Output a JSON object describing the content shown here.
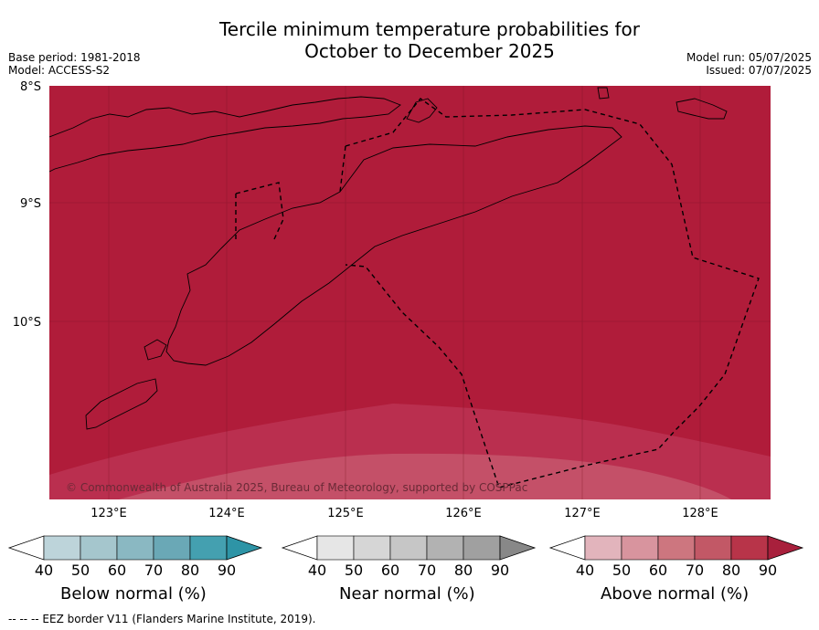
{
  "title_line1": "Tercile minimum temperature probabilities for",
  "title_line2": "October to December 2025",
  "meta_left": {
    "base_period": "Base period: 1981-2018",
    "model": "Model: ACCESS-S2"
  },
  "meta_right": {
    "model_run": "Model run: 05/07/2025",
    "issued": "Issued: 07/07/2025"
  },
  "map": {
    "lat_labels": [
      "8°S",
      "9°S",
      "10°S"
    ],
    "lon_labels": [
      "123°E",
      "124°E",
      "125°E",
      "126°E",
      "127°E",
      "128°E"
    ],
    "copyright": "© Commonwealth of Australia 2025, Bureau of Meteorology, supported by COSPPac",
    "colors": {
      "above_90": "#b01c3a",
      "above_80": "#c03a52",
      "above_70": "#cd6a78",
      "land_edge": "#000000"
    }
  },
  "legends": [
    {
      "title": "Below normal (%)",
      "ticks": [
        "40",
        "50",
        "60",
        "70",
        "80",
        "90"
      ],
      "colors": [
        "#bdd4da",
        "#a5c6cd",
        "#8ab8c2",
        "#6aa8b6",
        "#44a0b0",
        "#2e94a6"
      ]
    },
    {
      "title": "Near normal (%)",
      "ticks": [
        "40",
        "50",
        "60",
        "70",
        "80",
        "90"
      ],
      "colors": [
        "#e6e6e6",
        "#d6d6d6",
        "#c6c6c6",
        "#b2b2b2",
        "#a0a0a0",
        "#888888"
      ]
    },
    {
      "title": "Above normal (%)",
      "ticks": [
        "40",
        "50",
        "60",
        "70",
        "80",
        "90"
      ],
      "colors": [
        "#e2b4bc",
        "#d8949e",
        "#cd767f",
        "#c25866",
        "#b83449",
        "#a8203c"
      ]
    }
  ],
  "footer": "--  --  -- EEZ border V11 (Flanders Marine Institute, 2019)."
}
